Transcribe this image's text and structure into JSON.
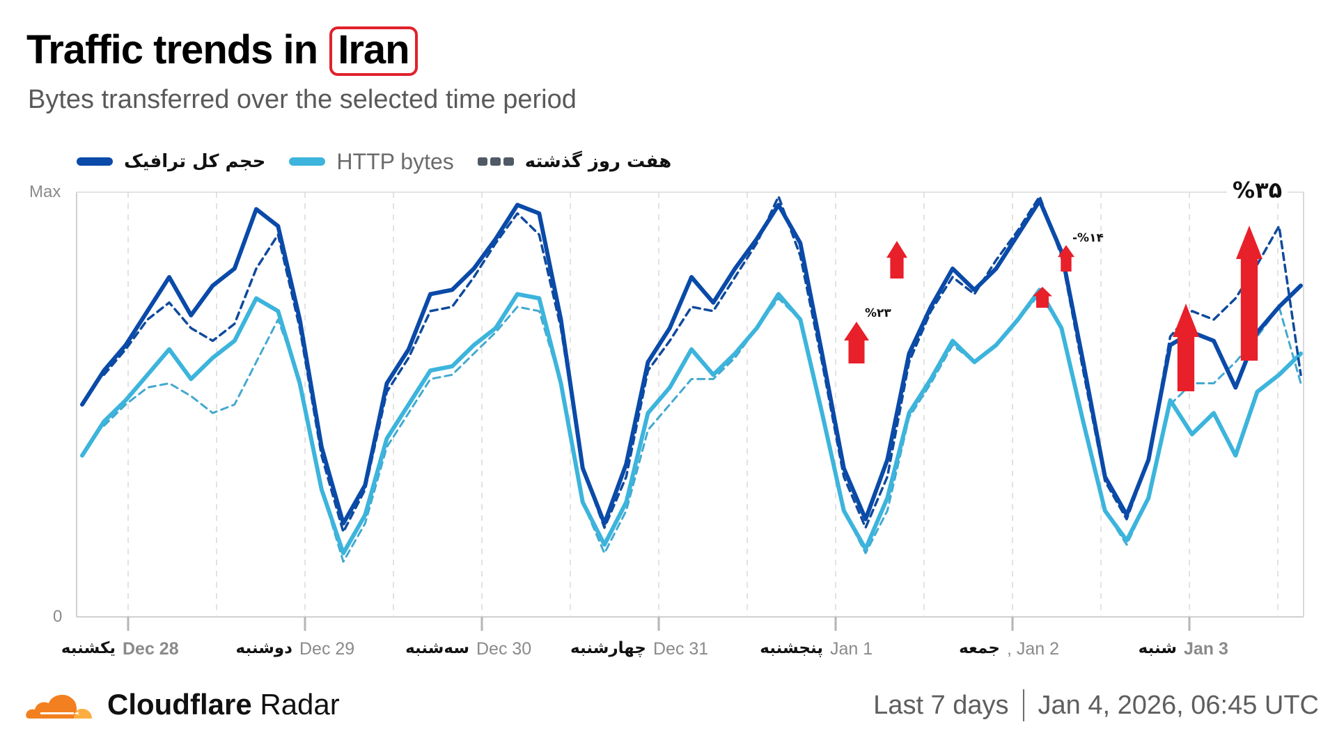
{
  "header": {
    "title_prefix": "Traffic trends in",
    "title_country": "Iran",
    "subtitle": "Bytes transferred over the selected time period"
  },
  "legend": {
    "items": [
      {
        "label": "حجم کل ترافیک",
        "color": "#0a4aa8",
        "style": "solid"
      },
      {
        "label": "HTTP bytes",
        "color": "#3cb4dc",
        "style": "solid"
      },
      {
        "label": "هفت روز گذشته",
        "color": "#505a66",
        "style": "dashed"
      }
    ]
  },
  "axes": {
    "y_max_label": "Max",
    "y_min_label": "0"
  },
  "x_axis": {
    "ticks": [
      {
        "date": "Dec 28",
        "day_fa": "یکشنبه",
        "bold": true
      },
      {
        "date": "Dec 29",
        "day_fa": "دوشنبه",
        "bold": false
      },
      {
        "date": "Dec 30",
        "day_fa": "سه‌شنبه",
        "bold": false
      },
      {
        "date": "Dec 31",
        "day_fa": "چهارشنبه",
        "bold": false
      },
      {
        "date": "Jan 1",
        "day_fa": "پنجشنبه",
        "bold": false
      },
      {
        "date": ", Jan 2",
        "day_fa": "جمعه",
        "bold": false
      },
      {
        "date": "Jan 3",
        "day_fa": "شنبه",
        "bold": true
      }
    ]
  },
  "annotations": [
    {
      "text": "%۲۳",
      "note": "increase vs previous week, Jan 1"
    },
    {
      "text": "-%۱۴",
      "note": "Jan 2"
    },
    {
      "text": "%۳۵",
      "note": "Jan 3"
    }
  ],
  "footer": {
    "brand_bold": "Cloudflare",
    "brand_regular": "Radar",
    "range": "Last 7 days",
    "timestamp": "Jan 4, 2026, 06:45 UTC"
  },
  "colors": {
    "total": "#0a4aa8",
    "http": "#3cb4dc",
    "prev_total": "#0f4a9c",
    "prev_http": "#43a9cf",
    "arrow": "#e8202a",
    "grid": "#d9d9d9"
  },
  "chart_data": {
    "type": "line",
    "title": "Traffic trends in Iran",
    "subtitle": "Bytes transferred over the selected time period",
    "xlabel": "",
    "ylabel": "",
    "ylim": [
      0,
      100
    ],
    "y_tick_labels": [
      "0",
      "Max"
    ],
    "x_tick_labels": [
      "Dec 28",
      "Dec 29",
      "Dec 30",
      "Dec 31",
      "Jan 1",
      "Jan 2",
      "Jan 3"
    ],
    "grid": "vertical dashed at half-day intervals",
    "legend_position": "top-left",
    "x_step_hours": 3,
    "x_start": "Dec 27 ~18:00",
    "series": [
      {
        "name": "حجم کل ترافیک (Total traffic)",
        "style": "solid",
        "values": [
          50,
          58,
          64,
          72,
          80,
          71,
          78,
          82,
          96,
          92,
          70,
          40,
          22,
          31,
          55,
          63,
          76,
          77,
          82,
          89,
          97,
          95,
          70,
          35,
          22,
          36,
          60,
          68,
          80,
          74,
          82,
          89,
          97,
          88,
          62,
          35,
          23,
          37,
          62,
          73,
          82,
          77,
          82,
          90,
          98,
          86,
          60,
          33,
          24,
          37,
          64,
          67,
          65,
          54,
          67,
          73,
          78
        ]
      },
      {
        "name": "HTTP bytes",
        "style": "solid",
        "values": [
          38,
          46,
          51,
          57,
          63,
          56,
          61,
          65,
          75,
          72,
          55,
          30,
          15,
          24,
          42,
          50,
          58,
          59,
          64,
          68,
          76,
          75,
          55,
          27,
          17,
          27,
          48,
          54,
          63,
          57,
          62,
          68,
          76,
          70,
          48,
          25,
          16,
          28,
          48,
          56,
          65,
          60,
          64,
          70,
          77,
          68,
          46,
          25,
          18,
          28,
          51,
          43,
          48,
          38,
          53,
          57,
          62
        ]
      },
      {
        "name": "هفت روز گذشته (Previous 7 days, total)",
        "style": "dashed",
        "values": [
          null,
          57,
          63,
          70,
          74,
          68,
          65,
          69,
          82,
          90,
          68,
          38,
          20,
          30,
          53,
          61,
          72,
          73,
          80,
          88,
          95,
          90,
          68,
          35,
          21,
          33,
          58,
          65,
          73,
          72,
          80,
          88,
          99,
          85,
          60,
          33,
          21,
          33,
          60,
          72,
          80,
          76,
          84,
          91,
          99,
          85,
          58,
          32,
          23,
          37,
          66,
          72,
          70,
          75,
          83,
          92,
          57
        ]
      },
      {
        "name": "هفت روز گذشته (Previous 7 days, HTTP)",
        "style": "dashed",
        "values": [
          null,
          45,
          50,
          54,
          55,
          52,
          48,
          50,
          60,
          70,
          56,
          30,
          13,
          22,
          40,
          48,
          56,
          57,
          62,
          67,
          73,
          72,
          55,
          27,
          15,
          25,
          44,
          50,
          56,
          56,
          61,
          68,
          75,
          70,
          48,
          25,
          15,
          25,
          47,
          55,
          64,
          60,
          64,
          70,
          76,
          68,
          46,
          25,
          17,
          28,
          50,
          55,
          55,
          60,
          66,
          73,
          55
        ]
      }
    ],
    "annotations": [
      {
        "text": "%۲۳",
        "x_tick": "Jan 1",
        "arrow": "up"
      },
      {
        "text": "-%۱۴",
        "x_tick": "Jan 2",
        "arrow": "up"
      },
      {
        "text": "%۳۵",
        "x_tick": "Jan 3",
        "arrow": "up"
      }
    ]
  }
}
